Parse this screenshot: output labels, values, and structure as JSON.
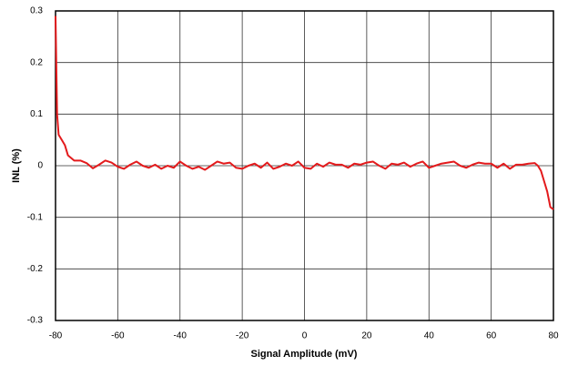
{
  "chart_data": {
    "type": "line",
    "xlabel": "Signal Amplitude (mV)",
    "ylabel": "INL (%)",
    "x": [
      -80,
      -79.5,
      -79,
      -78,
      -77,
      -76,
      -75,
      -74,
      -72,
      -70,
      -68,
      -66,
      -64,
      -62,
      -60,
      -58,
      -56,
      -54,
      -52,
      -50,
      -48,
      -46,
      -44,
      -42,
      -40,
      -38,
      -36,
      -34,
      -32,
      -30,
      -28,
      -26,
      -24,
      -22,
      -20,
      -18,
      -16,
      -14,
      -12,
      -10,
      -8,
      -6,
      -4,
      -2,
      0,
      2,
      4,
      6,
      8,
      10,
      12,
      14,
      16,
      18,
      20,
      22,
      24,
      26,
      28,
      30,
      32,
      34,
      36,
      38,
      40,
      42,
      44,
      46,
      48,
      50,
      52,
      54,
      56,
      58,
      60,
      62,
      64,
      66,
      68,
      70,
      72,
      74,
      75,
      76,
      77,
      78,
      79,
      80
    ],
    "series": [
      {
        "name": "INL",
        "color": "#e31a1c",
        "values": [
          0.29,
          0.1,
          0.06,
          0.05,
          0.04,
          0.02,
          0.015,
          0.01,
          0.01,
          0.005,
          -0.005,
          0.002,
          0.01,
          0.006,
          -0.002,
          -0.006,
          0.002,
          0.008,
          0.0,
          -0.004,
          0.002,
          -0.006,
          0.0,
          -0.004,
          0.008,
          0.0,
          -0.006,
          -0.002,
          -0.008,
          0.0,
          0.008,
          0.004,
          0.006,
          -0.004,
          -0.006,
          0.0,
          0.004,
          -0.004,
          0.006,
          -0.006,
          -0.002,
          0.004,
          0.0,
          0.008,
          -0.004,
          -0.006,
          0.004,
          -0.002,
          0.006,
          0.002,
          0.002,
          -0.004,
          0.004,
          0.002,
          0.006,
          0.008,
          0.0,
          -0.006,
          0.004,
          0.002,
          0.006,
          -0.002,
          0.004,
          0.008,
          -0.004,
          0.0,
          0.004,
          0.006,
          0.008,
          0.0,
          -0.004,
          0.002,
          0.006,
          0.004,
          0.004,
          -0.004,
          0.004,
          -0.006,
          0.002,
          0.002,
          0.004,
          0.005,
          0.0,
          -0.01,
          -0.03,
          -0.05,
          -0.08,
          -0.085
        ]
      }
    ],
    "xlim": [
      -80,
      80
    ],
    "xticks": [
      -80,
      -60,
      -40,
      -20,
      0,
      20,
      40,
      60,
      80
    ],
    "ylim": [
      -0.3,
      0.3
    ],
    "yticks": [
      0.3,
      0.2,
      0.1,
      0,
      -0.1,
      -0.2,
      -0.3
    ],
    "grid": true
  }
}
